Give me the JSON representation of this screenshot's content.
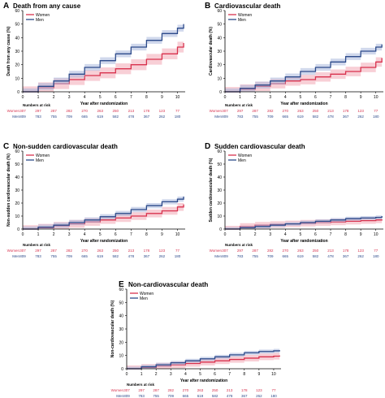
{
  "legend": {
    "women": "Women",
    "men": "Men"
  },
  "colors": {
    "women": "#d8324e",
    "men": "#2c4a8a",
    "women_band": "#f2a7b5",
    "men_band": "#a9b8dd",
    "axis": "#000000"
  },
  "risk": {
    "title": "Numbers at risk",
    "women_label": "Women",
    "men_label": "Men",
    "women": [
      "307",
      "297",
      "287",
      "282",
      "270",
      "263",
      "250",
      "213",
      "178",
      "123",
      "77"
    ],
    "men": [
      "809",
      "783",
      "755",
      "709",
      "665",
      "619",
      "582",
      "478",
      "367",
      "262",
      "180"
    ]
  },
  "chart_data": [
    {
      "panel": "A",
      "type": "line",
      "title": "Death from any cause",
      "xlabel": "Year after randomization",
      "ylabel": "Death from any cause (%)",
      "xlim": [
        0,
        10.5
      ],
      "ylim": [
        0,
        60
      ],
      "xticks": [
        "0",
        "1",
        "2",
        "3",
        "4",
        "5",
        "6",
        "7",
        "8",
        "9",
        "10"
      ],
      "yticks": [
        "0",
        "10",
        "20",
        "30",
        "40",
        "50",
        "60"
      ],
      "series": [
        {
          "name": "Women",
          "x": [
            0,
            1,
            2,
            3,
            4,
            5,
            6,
            7,
            8,
            9,
            10,
            10.4
          ],
          "y": [
            0,
            3,
            6,
            9,
            12,
            14,
            17,
            20,
            24,
            28,
            33,
            36
          ],
          "band": 4
        },
        {
          "name": "Men",
          "x": [
            0,
            1,
            2,
            3,
            4,
            5,
            6,
            7,
            8,
            9,
            10,
            10.4
          ],
          "y": [
            0,
            4,
            8,
            13,
            18,
            23,
            28,
            33,
            38,
            43,
            47,
            50
          ],
          "band": 2.5
        }
      ]
    },
    {
      "panel": "B",
      "type": "line",
      "title": "Cardiovascular death",
      "xlabel": "Year after randomization",
      "ylabel": "Cardiovascular death (%)",
      "xlim": [
        0,
        10.5
      ],
      "ylim": [
        0,
        60
      ],
      "xticks": [
        "0",
        "1",
        "2",
        "3",
        "4",
        "5",
        "6",
        "7",
        "8",
        "9",
        "10"
      ],
      "yticks": [
        "0",
        "10",
        "20",
        "30",
        "40",
        "50",
        "60"
      ],
      "series": [
        {
          "name": "Women",
          "x": [
            0,
            1,
            2,
            3,
            4,
            5,
            6,
            7,
            8,
            9,
            10,
            10.4
          ],
          "y": [
            0,
            2,
            4,
            6,
            8,
            9,
            11,
            13,
            15,
            18,
            22,
            25
          ],
          "band": 3.5
        },
        {
          "name": "Men",
          "x": [
            0,
            1,
            2,
            3,
            4,
            5,
            6,
            7,
            8,
            9,
            10,
            10.4
          ],
          "y": [
            0,
            2.5,
            5,
            8,
            11,
            15,
            18,
            22,
            26,
            30,
            33,
            35
          ],
          "band": 2.5
        }
      ]
    },
    {
      "panel": "C",
      "type": "line",
      "title": "Non-sudden cardiovascular death",
      "xlabel": "Year after randomization",
      "ylabel": "Non-sudden cardiovascular death (%)",
      "xlim": [
        0,
        10.5
      ],
      "ylim": [
        0,
        60
      ],
      "xticks": [
        "0",
        "1",
        "2",
        "3",
        "4",
        "5",
        "6",
        "7",
        "8",
        "9",
        "10"
      ],
      "yticks": [
        "0",
        "10",
        "20",
        "30",
        "40",
        "50",
        "60"
      ],
      "series": [
        {
          "name": "Women",
          "x": [
            0,
            1,
            2,
            3,
            4,
            5,
            6,
            7,
            8,
            9,
            10,
            10.4
          ],
          "y": [
            0,
            1,
            2.5,
            4,
            5.5,
            7,
            8.5,
            10,
            12,
            14,
            17,
            19
          ],
          "band": 3
        },
        {
          "name": "Men",
          "x": [
            0,
            1,
            2,
            3,
            4,
            5,
            6,
            7,
            8,
            9,
            10,
            10.4
          ],
          "y": [
            0,
            1.5,
            3,
            5,
            7,
            9.5,
            12,
            15,
            18,
            21,
            23,
            25
          ],
          "band": 2
        }
      ]
    },
    {
      "panel": "D",
      "type": "line",
      "title": "Sudden cardiovascular death",
      "xlabel": "Year after randomization",
      "ylabel": "Sudden cardiovascular death (%)",
      "xlim": [
        0,
        10.5
      ],
      "ylim": [
        0,
        60
      ],
      "xticks": [
        "0",
        "1",
        "2",
        "3",
        "4",
        "5",
        "6",
        "7",
        "8",
        "9",
        "10"
      ],
      "yticks": [
        "0",
        "10",
        "20",
        "30",
        "40",
        "50",
        "60"
      ],
      "series": [
        {
          "name": "Women",
          "x": [
            0,
            1,
            2,
            3,
            4,
            5,
            6,
            7,
            8,
            9,
            10,
            10.4
          ],
          "y": [
            0,
            2,
            3,
            3.5,
            4,
            4.5,
            5,
            5.5,
            6,
            6.5,
            7,
            7.5
          ],
          "band": 2.5
        },
        {
          "name": "Men",
          "x": [
            0,
            1,
            2,
            3,
            4,
            5,
            6,
            7,
            8,
            9,
            10,
            10.4
          ],
          "y": [
            0,
            1,
            2,
            3,
            4,
            5,
            6,
            7,
            8,
            8.5,
            9,
            10
          ],
          "band": 1.5
        }
      ]
    },
    {
      "panel": "E",
      "type": "line",
      "title": "Non-cardiovascular death",
      "xlabel": "Year after randomization",
      "ylabel": "Non-cardiovascular death (%)",
      "xlim": [
        0,
        10.5
      ],
      "ylim": [
        0,
        60
      ],
      "xticks": [
        "0",
        "1",
        "2",
        "3",
        "4",
        "5",
        "6",
        "7",
        "8",
        "9",
        "10"
      ],
      "yticks": [
        "0",
        "10",
        "20",
        "30",
        "40",
        "50",
        "60"
      ],
      "series": [
        {
          "name": "Women",
          "x": [
            0,
            1,
            2,
            3,
            4,
            5,
            6,
            7,
            8,
            9,
            10,
            10.4
          ],
          "y": [
            0,
            1,
            2,
            3,
            4,
            5,
            6,
            7,
            8,
            9,
            9.5,
            10
          ],
          "band": 2.5
        },
        {
          "name": "Men",
          "x": [
            0,
            1,
            2,
            3,
            4,
            5,
            6,
            7,
            8,
            9,
            10,
            10.4
          ],
          "y": [
            0,
            1.5,
            3,
            4.5,
            6,
            7.5,
            9,
            10.5,
            12,
            13,
            13.5,
            14
          ],
          "band": 1.5
        }
      ]
    }
  ]
}
